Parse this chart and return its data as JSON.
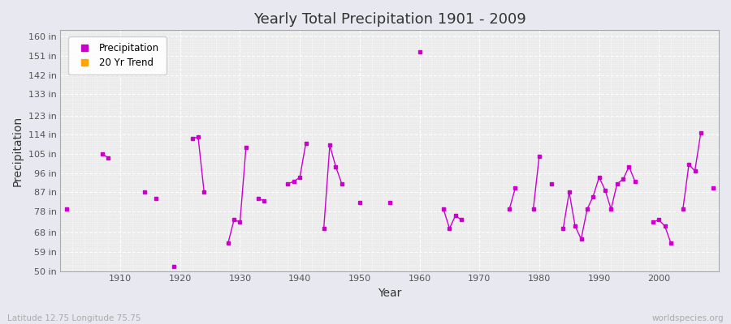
{
  "title": "Yearly Total Precipitation 1901 - 2009",
  "xlabel": "Year",
  "ylabel": "Precipitation",
  "subtitle": "Latitude 12.75 Longitude 75.75",
  "watermark": "worldspecies.org",
  "ylim": [
    50,
    163
  ],
  "yticks": [
    50,
    59,
    68,
    78,
    87,
    96,
    105,
    114,
    123,
    133,
    142,
    151,
    160
  ],
  "ytick_labels": [
    "50 in",
    "59 in",
    "68 in",
    "78 in",
    "87 in",
    "96 in",
    "105 in",
    "114 in",
    "123 in",
    "133 in",
    "142 in",
    "151 in",
    "160 in"
  ],
  "xticks": [
    1910,
    1920,
    1930,
    1940,
    1950,
    1960,
    1970,
    1980,
    1990,
    2000
  ],
  "line_color": "#cc00cc",
  "trend_color": "#ffa500",
  "fig_bg_color": "#e8e8f0",
  "plot_bg_color": "#ebebeb",
  "grid_color": "#ffffff",
  "years": [
    1901,
    1907,
    1908,
    1914,
    1916,
    1919,
    1922,
    1923,
    1924,
    1928,
    1929,
    1930,
    1931,
    1933,
    1934,
    1938,
    1939,
    1940,
    1941,
    1944,
    1945,
    1946,
    1947,
    1950,
    1955,
    1960,
    1964,
    1965,
    1966,
    1967,
    1975,
    1976,
    1979,
    1980,
    1982,
    1984,
    1985,
    1986,
    1987,
    1988,
    1989,
    1990,
    1991,
    1992,
    1993,
    1994,
    1995,
    1996,
    1999,
    2000,
    2001,
    2002,
    2004,
    2005,
    2006,
    2007,
    2009
  ],
  "precip": [
    79,
    105,
    103,
    87,
    84,
    52,
    112,
    113,
    87,
    63,
    74,
    73,
    108,
    84,
    83,
    91,
    92,
    94,
    110,
    70,
    109,
    99,
    91,
    82,
    82,
    153,
    79,
    70,
    76,
    74,
    79,
    89,
    79,
    104,
    91,
    70,
    87,
    71,
    65,
    79,
    85,
    94,
    88,
    79,
    91,
    93,
    99,
    92,
    73,
    74,
    71,
    63,
    79,
    100,
    97,
    115,
    89
  ]
}
